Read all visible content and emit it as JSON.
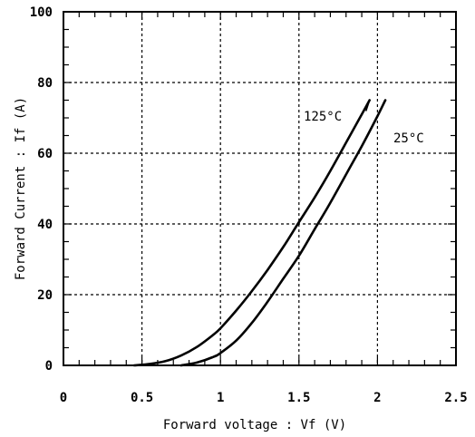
{
  "chart_data": {
    "type": "line",
    "title": "",
    "xlabel": "Forward voltage : Vf (V)",
    "ylabel": "Forward Current : If (A)",
    "xlim": [
      0,
      2.5
    ],
    "ylim": [
      0,
      100
    ],
    "x_ticks": [
      0,
      0.5,
      1,
      1.5,
      2,
      2.5
    ],
    "x_tick_labels": [
      "0",
      "0.5",
      "1",
      "1.5",
      "2",
      "2.5"
    ],
    "y_ticks": [
      0,
      20,
      40,
      60,
      80,
      100
    ],
    "y_tick_labels": [
      "0",
      "20",
      "40",
      "60",
      "80",
      "100"
    ],
    "grid": true,
    "legend": "none",
    "series": [
      {
        "name": "125°C",
        "x": [
          0.45,
          0.55,
          0.65,
          0.75,
          0.85,
          0.95,
          1.0,
          1.1,
          1.2,
          1.3,
          1.4,
          1.5,
          1.6,
          1.7,
          1.8,
          1.9,
          1.95
        ],
        "y": [
          0,
          0.4,
          1.2,
          2.8,
          5.2,
          8.5,
          10.5,
          15.5,
          21,
          27,
          33.5,
          40.5,
          47.5,
          55,
          63,
          71,
          75
        ]
      },
      {
        "name": "25°C",
        "x": [
          0.75,
          0.85,
          0.95,
          1.0,
          1.1,
          1.2,
          1.3,
          1.4,
          1.5,
          1.6,
          1.7,
          1.8,
          1.9,
          2.0,
          2.05
        ],
        "y": [
          0,
          0.8,
          2.3,
          3.5,
          7,
          12,
          18,
          24.5,
          31,
          38.5,
          46,
          54,
          62,
          70.5,
          75
        ]
      }
    ],
    "annotations": [
      {
        "text": "125°C",
        "series": "125°C"
      },
      {
        "text": "25°C",
        "series": "25°C"
      }
    ]
  }
}
